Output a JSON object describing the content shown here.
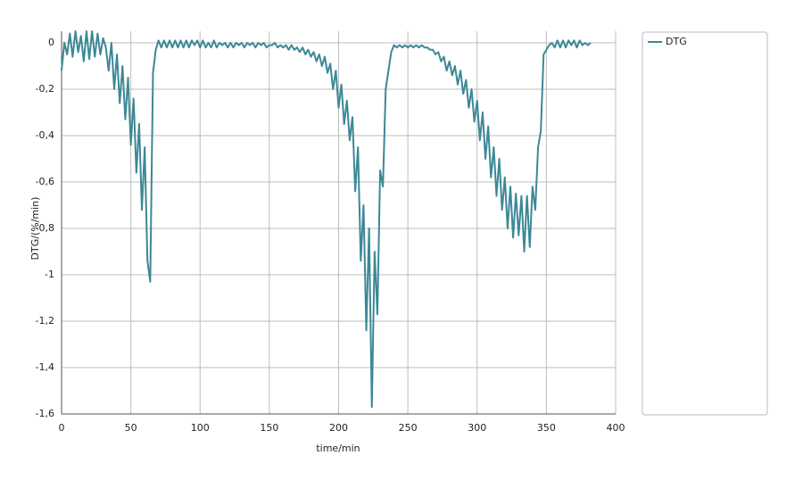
{
  "chart_data": {
    "type": "line",
    "x_label": "time/min",
    "y_label": "DTG/(%/min)",
    "x": [
      0,
      2,
      4,
      6,
      8,
      10,
      12,
      14,
      16,
      18,
      20,
      22,
      24,
      26,
      28,
      30,
      32,
      34,
      36,
      38,
      40,
      42,
      44,
      46,
      48,
      50,
      52,
      54,
      56,
      58,
      60,
      62,
      64,
      66,
      68,
      70,
      72,
      74,
      76,
      78,
      80,
      82,
      84,
      86,
      88,
      90,
      92,
      94,
      96,
      98,
      100,
      102,
      104,
      106,
      108,
      110,
      112,
      114,
      116,
      118,
      120,
      122,
      124,
      126,
      128,
      130,
      132,
      134,
      136,
      138,
      140,
      142,
      144,
      146,
      148,
      150,
      152,
      154,
      156,
      158,
      160,
      162,
      164,
      166,
      168,
      170,
      172,
      174,
      176,
      178,
      180,
      182,
      184,
      186,
      188,
      190,
      192,
      194,
      196,
      198,
      200,
      202,
      204,
      206,
      208,
      210,
      212,
      214,
      216,
      218,
      220,
      222,
      224,
      226,
      228,
      230,
      232,
      234,
      236,
      238,
      240,
      242,
      244,
      246,
      248,
      250,
      252,
      254,
      256,
      258,
      260,
      262,
      264,
      266,
      268,
      270,
      272,
      274,
      276,
      278,
      280,
      282,
      284,
      286,
      288,
      290,
      292,
      294,
      296,
      298,
      300,
      302,
      304,
      306,
      308,
      310,
      312,
      314,
      316,
      318,
      320,
      322,
      324,
      326,
      328,
      330,
      332,
      334,
      336,
      338,
      340,
      342,
      344,
      346,
      348,
      350,
      352,
      354,
      356,
      358,
      360,
      362,
      364,
      366,
      368,
      370,
      372,
      374,
      376,
      378,
      380,
      382
    ],
    "series": [
      {
        "name": "DTG",
        "color": "#3d8896",
        "values": [
          -0.12,
          0.0,
          -0.05,
          0.04,
          -0.06,
          0.05,
          -0.04,
          0.03,
          -0.08,
          0.05,
          -0.07,
          0.05,
          -0.06,
          0.04,
          -0.05,
          0.02,
          -0.02,
          -0.12,
          0.0,
          -0.2,
          -0.05,
          -0.26,
          -0.1,
          -0.33,
          -0.15,
          -0.44,
          -0.24,
          -0.56,
          -0.35,
          -0.72,
          -0.45,
          -0.94,
          -1.03,
          -0.13,
          -0.03,
          0.01,
          -0.02,
          0.01,
          -0.02,
          0.01,
          -0.02,
          0.01,
          -0.02,
          0.01,
          -0.02,
          0.01,
          -0.02,
          0.01,
          -0.01,
          0.01,
          -0.02,
          0.01,
          -0.02,
          0.0,
          -0.02,
          0.01,
          -0.02,
          0.0,
          -0.01,
          0.0,
          -0.02,
          0.0,
          -0.02,
          0.0,
          -0.01,
          0.0,
          -0.02,
          0.0,
          -0.01,
          0.0,
          -0.02,
          0.0,
          -0.01,
          0.0,
          -0.02,
          -0.01,
          -0.01,
          0.0,
          -0.02,
          -0.01,
          -0.02,
          -0.01,
          -0.03,
          -0.01,
          -0.03,
          -0.02,
          -0.04,
          -0.02,
          -0.05,
          -0.03,
          -0.06,
          -0.04,
          -0.08,
          -0.05,
          -0.1,
          -0.06,
          -0.13,
          -0.09,
          -0.2,
          -0.12,
          -0.28,
          -0.18,
          -0.35,
          -0.25,
          -0.42,
          -0.32,
          -0.64,
          -0.45,
          -0.94,
          -0.7,
          -1.24,
          -0.8,
          -1.57,
          -0.9,
          -1.17,
          -0.55,
          -0.62,
          -0.2,
          -0.12,
          -0.04,
          -0.01,
          -0.02,
          -0.01,
          -0.02,
          -0.01,
          -0.02,
          -0.01,
          -0.02,
          -0.01,
          -0.02,
          -0.01,
          -0.02,
          -0.02,
          -0.03,
          -0.03,
          -0.05,
          -0.04,
          -0.08,
          -0.06,
          -0.12,
          -0.08,
          -0.14,
          -0.1,
          -0.18,
          -0.12,
          -0.22,
          -0.16,
          -0.28,
          -0.2,
          -0.34,
          -0.25,
          -0.42,
          -0.3,
          -0.5,
          -0.36,
          -0.58,
          -0.45,
          -0.66,
          -0.5,
          -0.72,
          -0.58,
          -0.8,
          -0.62,
          -0.84,
          -0.65,
          -0.83,
          -0.66,
          -0.9,
          -0.66,
          -0.88,
          -0.62,
          -0.72,
          -0.45,
          -0.38,
          -0.05,
          -0.03,
          -0.01,
          0.0,
          -0.02,
          0.01,
          -0.02,
          0.01,
          -0.02,
          0.01,
          -0.01,
          0.01,
          -0.02,
          0.01,
          -0.01,
          0.0,
          -0.01,
          0.0
        ]
      }
    ],
    "xlim": [
      0,
      400
    ],
    "xticks": [
      0,
      50,
      100,
      150,
      200,
      250,
      300,
      350,
      400
    ],
    "ylim": [
      -1.6,
      0.05
    ],
    "yticks": [
      0,
      {
        "value": -0.2,
        "label": "-0,2"
      },
      {
        "value": -0.4,
        "label": "-0,4"
      },
      {
        "value": -0.6,
        "label": "-0,6"
      },
      {
        "value": -0.8,
        "label": "-0,8"
      },
      -1,
      {
        "value": -1.2,
        "label": "-1,2"
      },
      {
        "value": -1.4,
        "label": "-1,4"
      },
      {
        "value": -1.6,
        "label": "-1,6"
      }
    ],
    "grid": true,
    "legend": "right"
  }
}
